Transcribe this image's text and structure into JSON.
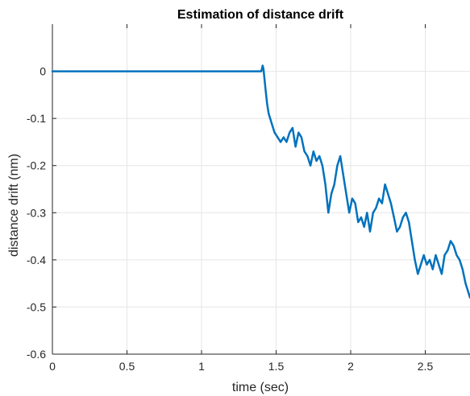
{
  "chart_data": {
    "type": "line",
    "title": "Estimation of distance drift",
    "xlabel": "time (sec)",
    "ylabel": "distance drift (nm)",
    "xlim": [
      0,
      2.8
    ],
    "ylim": [
      -0.6,
      0.1
    ],
    "xticks": [
      0,
      0.5,
      1,
      1.5,
      2,
      2.5
    ],
    "xtick_labels": [
      "0",
      "0.5",
      "1",
      "1.5",
      "2",
      "2.5"
    ],
    "yticks": [
      0,
      -0.1,
      -0.2,
      -0.3,
      -0.4,
      -0.5,
      -0.6
    ],
    "ytick_labels": [
      "0",
      "-0.1",
      "-0.2",
      "-0.3",
      "-0.4",
      "-0.5",
      "-0.6"
    ],
    "grid": true,
    "line_color": "#0072BD",
    "series": [
      {
        "x": [
          0,
          0.5,
          1.0,
          1.2,
          1.4,
          1.405,
          1.41,
          1.415,
          1.42,
          1.43,
          1.44,
          1.45,
          1.47,
          1.49,
          1.51,
          1.53,
          1.55,
          1.57,
          1.59,
          1.61,
          1.63,
          1.65,
          1.67,
          1.69,
          1.71,
          1.73,
          1.75,
          1.77,
          1.79,
          1.81,
          1.83,
          1.85,
          1.87,
          1.89,
          1.91,
          1.93,
          1.95,
          1.97,
          1.99,
          2.01,
          2.03,
          2.05,
          2.07,
          2.09,
          2.11,
          2.13,
          2.15,
          2.17,
          2.19,
          2.21,
          2.23,
          2.25,
          2.27,
          2.29,
          2.31,
          2.33,
          2.35,
          2.37,
          2.39,
          2.41,
          2.43,
          2.45,
          2.47,
          2.49,
          2.51,
          2.53,
          2.55,
          2.57,
          2.59,
          2.61,
          2.63,
          2.65,
          2.67,
          2.69,
          2.71,
          2.73,
          2.75,
          2.77,
          2.79,
          2.8
        ],
        "y": [
          0,
          0,
          0,
          0,
          0,
          0.005,
          0.012,
          0.005,
          -0.01,
          -0.04,
          -0.07,
          -0.09,
          -0.11,
          -0.13,
          -0.14,
          -0.15,
          -0.14,
          -0.15,
          -0.13,
          -0.12,
          -0.16,
          -0.13,
          -0.14,
          -0.17,
          -0.18,
          -0.2,
          -0.17,
          -0.19,
          -0.18,
          -0.2,
          -0.24,
          -0.3,
          -0.26,
          -0.24,
          -0.2,
          -0.18,
          -0.22,
          -0.26,
          -0.3,
          -0.27,
          -0.28,
          -0.32,
          -0.31,
          -0.33,
          -0.3,
          -0.34,
          -0.3,
          -0.29,
          -0.27,
          -0.28,
          -0.24,
          -0.26,
          -0.28,
          -0.31,
          -0.34,
          -0.33,
          -0.31,
          -0.3,
          -0.32,
          -0.36,
          -0.4,
          -0.43,
          -0.41,
          -0.39,
          -0.41,
          -0.4,
          -0.42,
          -0.39,
          -0.41,
          -0.43,
          -0.39,
          -0.38,
          -0.36,
          -0.37,
          -0.39,
          -0.4,
          -0.42,
          -0.45,
          -0.47,
          -0.48
        ]
      }
    ]
  }
}
